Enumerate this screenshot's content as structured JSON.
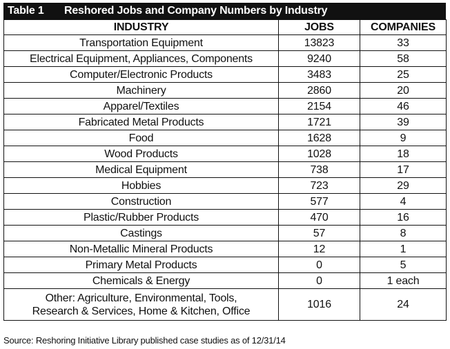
{
  "table_number": "Table 1",
  "title": "Reshored Jobs and Company Numbers by Industry",
  "headers": [
    "INDUSTRY",
    "JOBS",
    "COMPANIES"
  ],
  "rows": [
    {
      "industry": "Transportation Equipment",
      "jobs": "13823",
      "companies": "33"
    },
    {
      "industry": "Electrical Equipment, Appliances, Components",
      "jobs": "9240",
      "companies": "58"
    },
    {
      "industry": "Computer/Electronic Products",
      "jobs": "3483",
      "companies": "25"
    },
    {
      "industry": "Machinery",
      "jobs": "2860",
      "companies": "20"
    },
    {
      "industry": "Apparel/Textiles",
      "jobs": "2154",
      "companies": "46"
    },
    {
      "industry": "Fabricated Metal Products",
      "jobs": "1721",
      "companies": "39"
    },
    {
      "industry": "Food",
      "jobs": "1628",
      "companies": "9"
    },
    {
      "industry": "Wood Products",
      "jobs": "1028",
      "companies": "18"
    },
    {
      "industry": "Medical Equipment",
      "jobs": "738",
      "companies": "17"
    },
    {
      "industry": "Hobbies",
      "jobs": "723",
      "companies": "29"
    },
    {
      "industry": "Construction",
      "jobs": "577",
      "companies": "4"
    },
    {
      "industry": "Plastic/Rubber Products",
      "jobs": "470",
      "companies": "16"
    },
    {
      "industry": "Castings",
      "jobs": "57",
      "companies": "8"
    },
    {
      "industry": "Non-Metallic Mineral Products",
      "jobs": "12",
      "companies": "1"
    },
    {
      "industry": "Primary Metal Products",
      "jobs": "0",
      "companies": "5"
    },
    {
      "industry": "Chemicals & Energy",
      "jobs": "0",
      "companies": "1 each"
    }
  ],
  "last_row": {
    "industry_line1": "Other: Agriculture, Environmental, Tools,",
    "industry_line2": "Research & Services, Home & Kitchen, Office",
    "jobs": "1016",
    "companies": "24"
  },
  "source": "Source: Reshoring Initiative Library published case studies as of 12/31/14",
  "colors": {
    "title_bar_bg": "#111111",
    "title_bar_text": "#ffffff",
    "border": "#111111"
  }
}
